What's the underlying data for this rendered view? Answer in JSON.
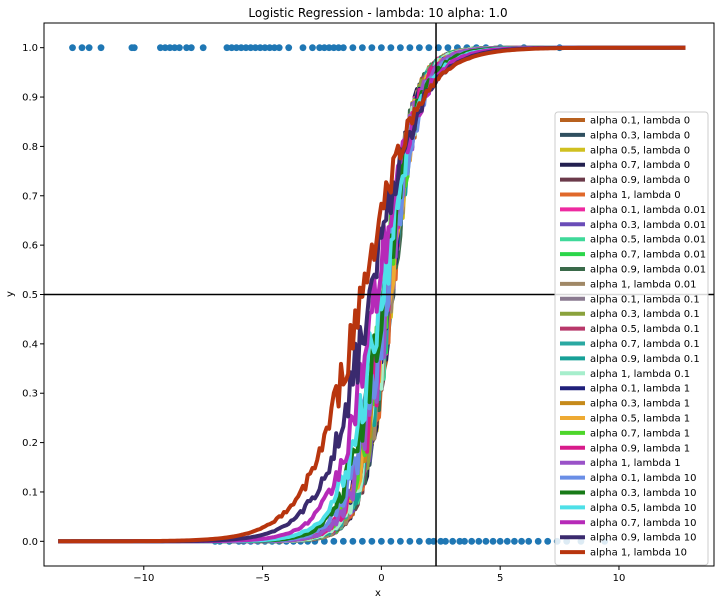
{
  "chart_data": {
    "type": "line",
    "title": "Logistic Regression - lambda: 10 alpha: 1.0",
    "xlabel": "x",
    "ylabel": "y",
    "xlim": [
      -14.2,
      14.0
    ],
    "ylim": [
      -0.05,
      1.05
    ],
    "x_ticks": [
      -10,
      -5,
      0,
      5,
      10
    ],
    "x_tick_labels": [
      "−10",
      "−5",
      "0",
      "5",
      "10"
    ],
    "y_ticks": [
      0.0,
      0.1,
      0.2,
      0.3,
      0.4,
      0.5,
      0.6,
      0.7,
      0.8,
      0.9,
      1.0
    ],
    "y_tick_labels": [
      "0.0",
      "0.1",
      "0.2",
      "0.3",
      "0.4",
      "0.5",
      "0.6",
      "0.7",
      "0.8",
      "0.9",
      "1.0"
    ],
    "grid": false,
    "legend_position": "right",
    "reference_lines": {
      "horizontal_y": 0.5,
      "vertical_x": 2.3
    },
    "scatter": {
      "color": "#1f77b4",
      "y1_x": [
        -13.0,
        -12.6,
        -12.3,
        -11.8,
        -10.5,
        -10.4,
        -9.3,
        -9.1,
        -8.9,
        -8.7,
        -8.5,
        -8.2,
        -8.0,
        -7.5,
        -6.5,
        -6.3,
        -6.1,
        -5.9,
        -5.7,
        -5.5,
        -5.3,
        -5.1,
        -4.9,
        -4.7,
        -4.5,
        -4.3,
        -3.9,
        -3.3,
        -2.9,
        -2.6,
        -2.4,
        -2.2,
        -2.0,
        -1.8,
        -1.6,
        -1.2,
        -0.8,
        -0.4,
        0.0,
        0.4,
        0.8,
        1.2,
        1.6,
        2.0,
        2.4,
        2.8,
        3.2,
        3.6,
        4.0,
        4.4,
        5.0,
        6.0,
        7.5
      ],
      "y0_x": [
        -7.0,
        -6.8,
        -6.4,
        -6.0,
        -5.8,
        -5.5,
        -5.2,
        -4.9,
        -4.6,
        -4.3,
        -4.0,
        -3.7,
        -3.4,
        -3.1,
        -2.8,
        -2.4,
        -2.0,
        -1.6,
        -1.2,
        -0.8,
        -0.4,
        0.0,
        0.4,
        0.8,
        1.2,
        1.6,
        2.0,
        2.2,
        2.5,
        2.7,
        3.0,
        3.3,
        3.5,
        3.8,
        4.1,
        4.4,
        4.7,
        5.0,
        5.3,
        5.6,
        5.9,
        6.2,
        6.6,
        7.0,
        7.4,
        7.8,
        8.4,
        9.4
      ]
    },
    "series": [
      {
        "name": "alpha 0.1, lambda 0",
        "color": "#b8611f",
        "x0": 0.3,
        "k": 1.7
      },
      {
        "name": "alpha 0.3, lambda 0",
        "color": "#2f4f5f",
        "x0": 0.3,
        "k": 1.7
      },
      {
        "name": "alpha 0.5, lambda 0",
        "color": "#d0c020",
        "x0": 0.3,
        "k": 1.7
      },
      {
        "name": "alpha 0.7, lambda 0",
        "color": "#23204f",
        "x0": 0.3,
        "k": 1.7
      },
      {
        "name": "alpha 0.9, lambda 0",
        "color": "#6b3a4a",
        "x0": 0.3,
        "k": 1.7
      },
      {
        "name": "alpha 1, lambda 0",
        "color": "#e0682a",
        "x0": 0.3,
        "k": 1.7
      },
      {
        "name": "alpha 0.1, lambda 0.01",
        "color": "#ee2aa0",
        "x0": 0.28,
        "k": 1.68
      },
      {
        "name": "alpha 0.3, lambda 0.01",
        "color": "#6a4cb8",
        "x0": 0.28,
        "k": 1.68
      },
      {
        "name": "alpha 0.5, lambda 0.01",
        "color": "#3fd99a",
        "x0": 0.28,
        "k": 1.68
      },
      {
        "name": "alpha 0.7, lambda 0.01",
        "color": "#2bd64a",
        "x0": 0.28,
        "k": 1.68
      },
      {
        "name": "alpha 0.9, lambda 0.01",
        "color": "#3a6a4a",
        "x0": 0.28,
        "k": 1.68
      },
      {
        "name": "alpha 1, lambda 0.01",
        "color": "#a08866",
        "x0": 0.28,
        "k": 1.68
      },
      {
        "name": "alpha 0.1, lambda 0.1",
        "color": "#8a7a90",
        "x0": 0.25,
        "k": 1.62
      },
      {
        "name": "alpha 0.3, lambda 0.1",
        "color": "#8aa23c",
        "x0": 0.25,
        "k": 1.62
      },
      {
        "name": "alpha 0.5, lambda 0.1",
        "color": "#b8386a",
        "x0": 0.25,
        "k": 1.62
      },
      {
        "name": "alpha 0.7, lambda 0.1",
        "color": "#2aa9a2",
        "x0": 0.25,
        "k": 1.62
      },
      {
        "name": "alpha 0.9, lambda 0.1",
        "color": "#17a097",
        "x0": 0.25,
        "k": 1.62
      },
      {
        "name": "alpha 1, lambda 0.1",
        "color": "#a6eecc",
        "x0": 0.25,
        "k": 1.62
      },
      {
        "name": "alpha 0.1, lambda 1",
        "color": "#1f1f7a",
        "x0": 0.2,
        "k": 1.5
      },
      {
        "name": "alpha 0.3, lambda 1",
        "color": "#c68a1a",
        "x0": 0.2,
        "k": 1.5
      },
      {
        "name": "alpha 0.5, lambda 1",
        "color": "#eeaa33",
        "x0": 0.2,
        "k": 1.5
      },
      {
        "name": "alpha 0.7, lambda 1",
        "color": "#4dd62a",
        "x0": 0.2,
        "k": 1.5
      },
      {
        "name": "alpha 0.9, lambda 1",
        "color": "#d81b8a",
        "x0": 0.2,
        "k": 1.5
      },
      {
        "name": "alpha 1, lambda 1",
        "color": "#9a52c8",
        "x0": 0.2,
        "k": 1.5
      },
      {
        "name": "alpha 0.1, lambda 10",
        "color": "#6a8ee6",
        "x0": 0.15,
        "k": 1.35
      },
      {
        "name": "alpha 0.3, lambda 10",
        "color": "#177a17",
        "x0": 0.05,
        "k": 1.3
      },
      {
        "name": "alpha 0.5, lambda 10",
        "color": "#4ee0e8",
        "x0": 0.0,
        "k": 1.2
      },
      {
        "name": "alpha 0.7, lambda 10",
        "color": "#b62ab8",
        "x0": -0.2,
        "k": 1.1
      },
      {
        "name": "alpha 0.9, lambda 10",
        "color": "#3a2a6e",
        "x0": -0.45,
        "k": 0.95
      },
      {
        "name": "alpha 1, lambda 10",
        "color": "#b8350e",
        "x0": -0.8,
        "k": 0.85
      }
    ]
  }
}
